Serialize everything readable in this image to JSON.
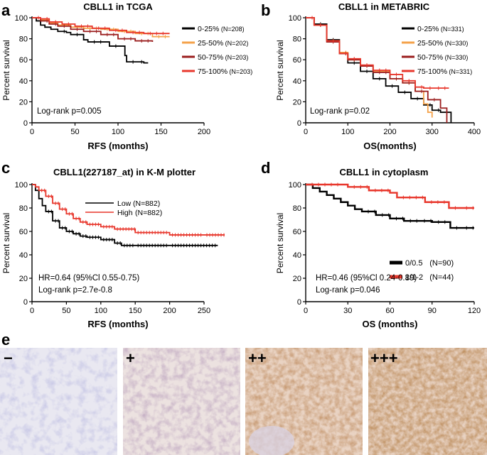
{
  "colors": {
    "q1": "#000000",
    "q2": "#f4a24a",
    "q3": "#9b1f1f",
    "q4": "#e8372c",
    "low": "#000000",
    "high": "#e8372c",
    "neg": "#000000",
    "pos": "#e8372c"
  },
  "panel_letters": {
    "a": "a",
    "b": "b",
    "c": "c",
    "d": "d",
    "e": "e"
  },
  "ihc": [
    {
      "label": "−",
      "intensity": "negative"
    },
    {
      "label": "+",
      "intensity": "weak"
    },
    {
      "label": "++",
      "intensity": "moderate"
    },
    {
      "label": "+++",
      "intensity": "strong"
    }
  ],
  "chart_data": [
    {
      "id": "a",
      "type": "line",
      "subtype": "kaplan-meier",
      "title": "CBLL1 in TCGA",
      "xlabel": "RFS (months)",
      "ylabel": "Percent survival",
      "xlim": [
        0,
        200
      ],
      "ylim": [
        0,
        100
      ],
      "xticks": [
        0,
        50,
        100,
        150,
        200
      ],
      "yticks": [
        0,
        20,
        40,
        60,
        80,
        100
      ],
      "annotation": "Log-rank p=0.005",
      "legend": "top-right",
      "series": [
        {
          "name": "0-25%",
          "n": "(N=208)",
          "color": "#000000",
          "x": [
            0,
            5,
            10,
            15,
            22,
            30,
            40,
            45,
            55,
            60,
            65,
            85,
            90,
            100,
            105,
            108,
            110,
            120,
            130,
            135
          ],
          "y": [
            100,
            97,
            93,
            91,
            89,
            87,
            86,
            84,
            84,
            79,
            77,
            77,
            73,
            73,
            73,
            64,
            58,
            58,
            57,
            57
          ]
        },
        {
          "name": "25-50%",
          "n": "(N=202)",
          "color": "#f4a24a",
          "x": [
            0,
            10,
            20,
            30,
            45,
            60,
            80,
            100,
            120,
            140,
            160
          ],
          "y": [
            100,
            98,
            95,
            93,
            91,
            90,
            89,
            87,
            85,
            82,
            82
          ]
        },
        {
          "name": "50-75%",
          "n": "(N=203)",
          "color": "#9b1f1f",
          "x": [
            0,
            10,
            20,
            30,
            45,
            60,
            80,
            100,
            120,
            140
          ],
          "y": [
            100,
            97,
            94,
            92,
            89,
            87,
            84,
            80,
            78,
            77
          ]
        },
        {
          "name": "75-100%",
          "n": "(N=203)",
          "color": "#e8372c",
          "x": [
            0,
            10,
            20,
            35,
            50,
            70,
            90,
            110,
            130,
            160
          ],
          "y": [
            100,
            99,
            96,
            94,
            92,
            90,
            88,
            86,
            85,
            85
          ]
        }
      ]
    },
    {
      "id": "b",
      "type": "line",
      "subtype": "kaplan-meier",
      "title": "CBLL1 in METABRIC",
      "xlabel": "OS(months)",
      "ylabel": "Percent survival",
      "xlim": [
        0,
        400
      ],
      "ylim": [
        0,
        100
      ],
      "xticks": [
        0,
        100,
        200,
        300,
        400
      ],
      "yticks": [
        0,
        20,
        40,
        60,
        80,
        100
      ],
      "annotation": "Log-rank p=0.02",
      "legend": "top-right",
      "series": [
        {
          "name": "0-25%",
          "n": "(N=331)",
          "color": "#000000",
          "x": [
            0,
            20,
            50,
            80,
            100,
            130,
            160,
            190,
            220,
            250,
            280,
            300,
            320,
            345,
            345
          ],
          "y": [
            100,
            94,
            79,
            66,
            57,
            49,
            42,
            35,
            29,
            23,
            17,
            12,
            10,
            10,
            0
          ]
        },
        {
          "name": "25-50%",
          "n": "(N=330)",
          "color": "#f4a24a",
          "x": [
            0,
            20,
            50,
            80,
            100,
            130,
            160,
            200,
            230,
            260,
            280,
            290,
            300
          ],
          "y": [
            100,
            93,
            78,
            67,
            60,
            54,
            49,
            42,
            38,
            30,
            18,
            10,
            5
          ]
        },
        {
          "name": "50-75%",
          "n": "(N=330)",
          "color": "#9b1f1f",
          "x": [
            0,
            20,
            50,
            80,
            100,
            130,
            160,
            200,
            230,
            260,
            290,
            320,
            335,
            335
          ],
          "y": [
            100,
            93,
            77,
            66,
            60,
            54,
            48,
            42,
            38,
            30,
            22,
            14,
            14,
            0
          ]
        },
        {
          "name": "75-100%",
          "n": "(N=331)",
          "color": "#e8372c",
          "x": [
            0,
            20,
            50,
            80,
            100,
            130,
            160,
            200,
            230,
            260,
            280,
            300,
            340
          ],
          "y": [
            100,
            93,
            78,
            66,
            61,
            55,
            50,
            46,
            40,
            34,
            33,
            33,
            33
          ]
        }
      ]
    },
    {
      "id": "c",
      "type": "line",
      "subtype": "kaplan-meier",
      "title": "CBLL1(227187_at) in K-M plotter",
      "xlabel": "RFS (months)",
      "ylabel": "Percent survival",
      "xlim": [
        0,
        250
      ],
      "ylim": [
        0,
        100
      ],
      "xticks": [
        0,
        50,
        100,
        150,
        200,
        250
      ],
      "yticks": [
        0,
        20,
        40,
        60,
        80,
        100
      ],
      "annotation": "HR=0.64 (95%Cl 0.55-0.75)",
      "annotation2": "Log-rank p=2.7e-0.8",
      "legend": "top-right",
      "series": [
        {
          "name": "Low",
          "n": "(N=882)",
          "color": "#000000",
          "x": [
            0,
            5,
            10,
            15,
            20,
            30,
            40,
            50,
            60,
            70,
            80,
            100,
            120,
            130,
            150,
            200,
            270
          ],
          "y": [
            100,
            95,
            88,
            82,
            77,
            69,
            63,
            60,
            58,
            56,
            55,
            53,
            50,
            48,
            48,
            48,
            48
          ]
        },
        {
          "name": "High",
          "n": "(N=882)",
          "color": "#e8372c",
          "x": [
            0,
            5,
            10,
            20,
            30,
            40,
            50,
            60,
            70,
            80,
            100,
            120,
            150,
            200,
            250,
            280
          ],
          "y": [
            100,
            98,
            95,
            90,
            84,
            79,
            75,
            71,
            68,
            66,
            64,
            62,
            59,
            57,
            57,
            57
          ]
        }
      ]
    },
    {
      "id": "d",
      "type": "line",
      "subtype": "kaplan-meier",
      "title": "CBLL1 in cytoplasm",
      "xlabel": "OS (months)",
      "ylabel": "Percent survival",
      "xlim": [
        0,
        120
      ],
      "ylim": [
        0,
        100
      ],
      "xticks": [
        0,
        30,
        60,
        90,
        120
      ],
      "yticks": [
        0,
        20,
        40,
        60,
        80,
        100
      ],
      "annotation": "HR=0.46 (95%Cl 0.24-0.89)",
      "annotation2": "Log-rank p=0.046",
      "legend": "right",
      "series": [
        {
          "name": "0/0.5",
          "n": "(N=90)",
          "color": "#000000",
          "x": [
            0,
            5,
            10,
            15,
            20,
            25,
            30,
            35,
            40,
            50,
            60,
            70,
            80,
            90,
            100,
            103,
            110,
            120
          ],
          "y": [
            100,
            97,
            94,
            91,
            88,
            85,
            82,
            79,
            77,
            74,
            71,
            69,
            69,
            68,
            68,
            63,
            63,
            63
          ]
        },
        {
          "name": "1/1-2",
          "n": "(N=44)",
          "color": "#e8372c",
          "x": [
            0,
            25,
            30,
            45,
            60,
            65,
            85,
            100,
            102,
            110,
            120
          ],
          "y": [
            100,
            100,
            98,
            95,
            93,
            89,
            85,
            85,
            80,
            80,
            80
          ]
        }
      ]
    }
  ]
}
